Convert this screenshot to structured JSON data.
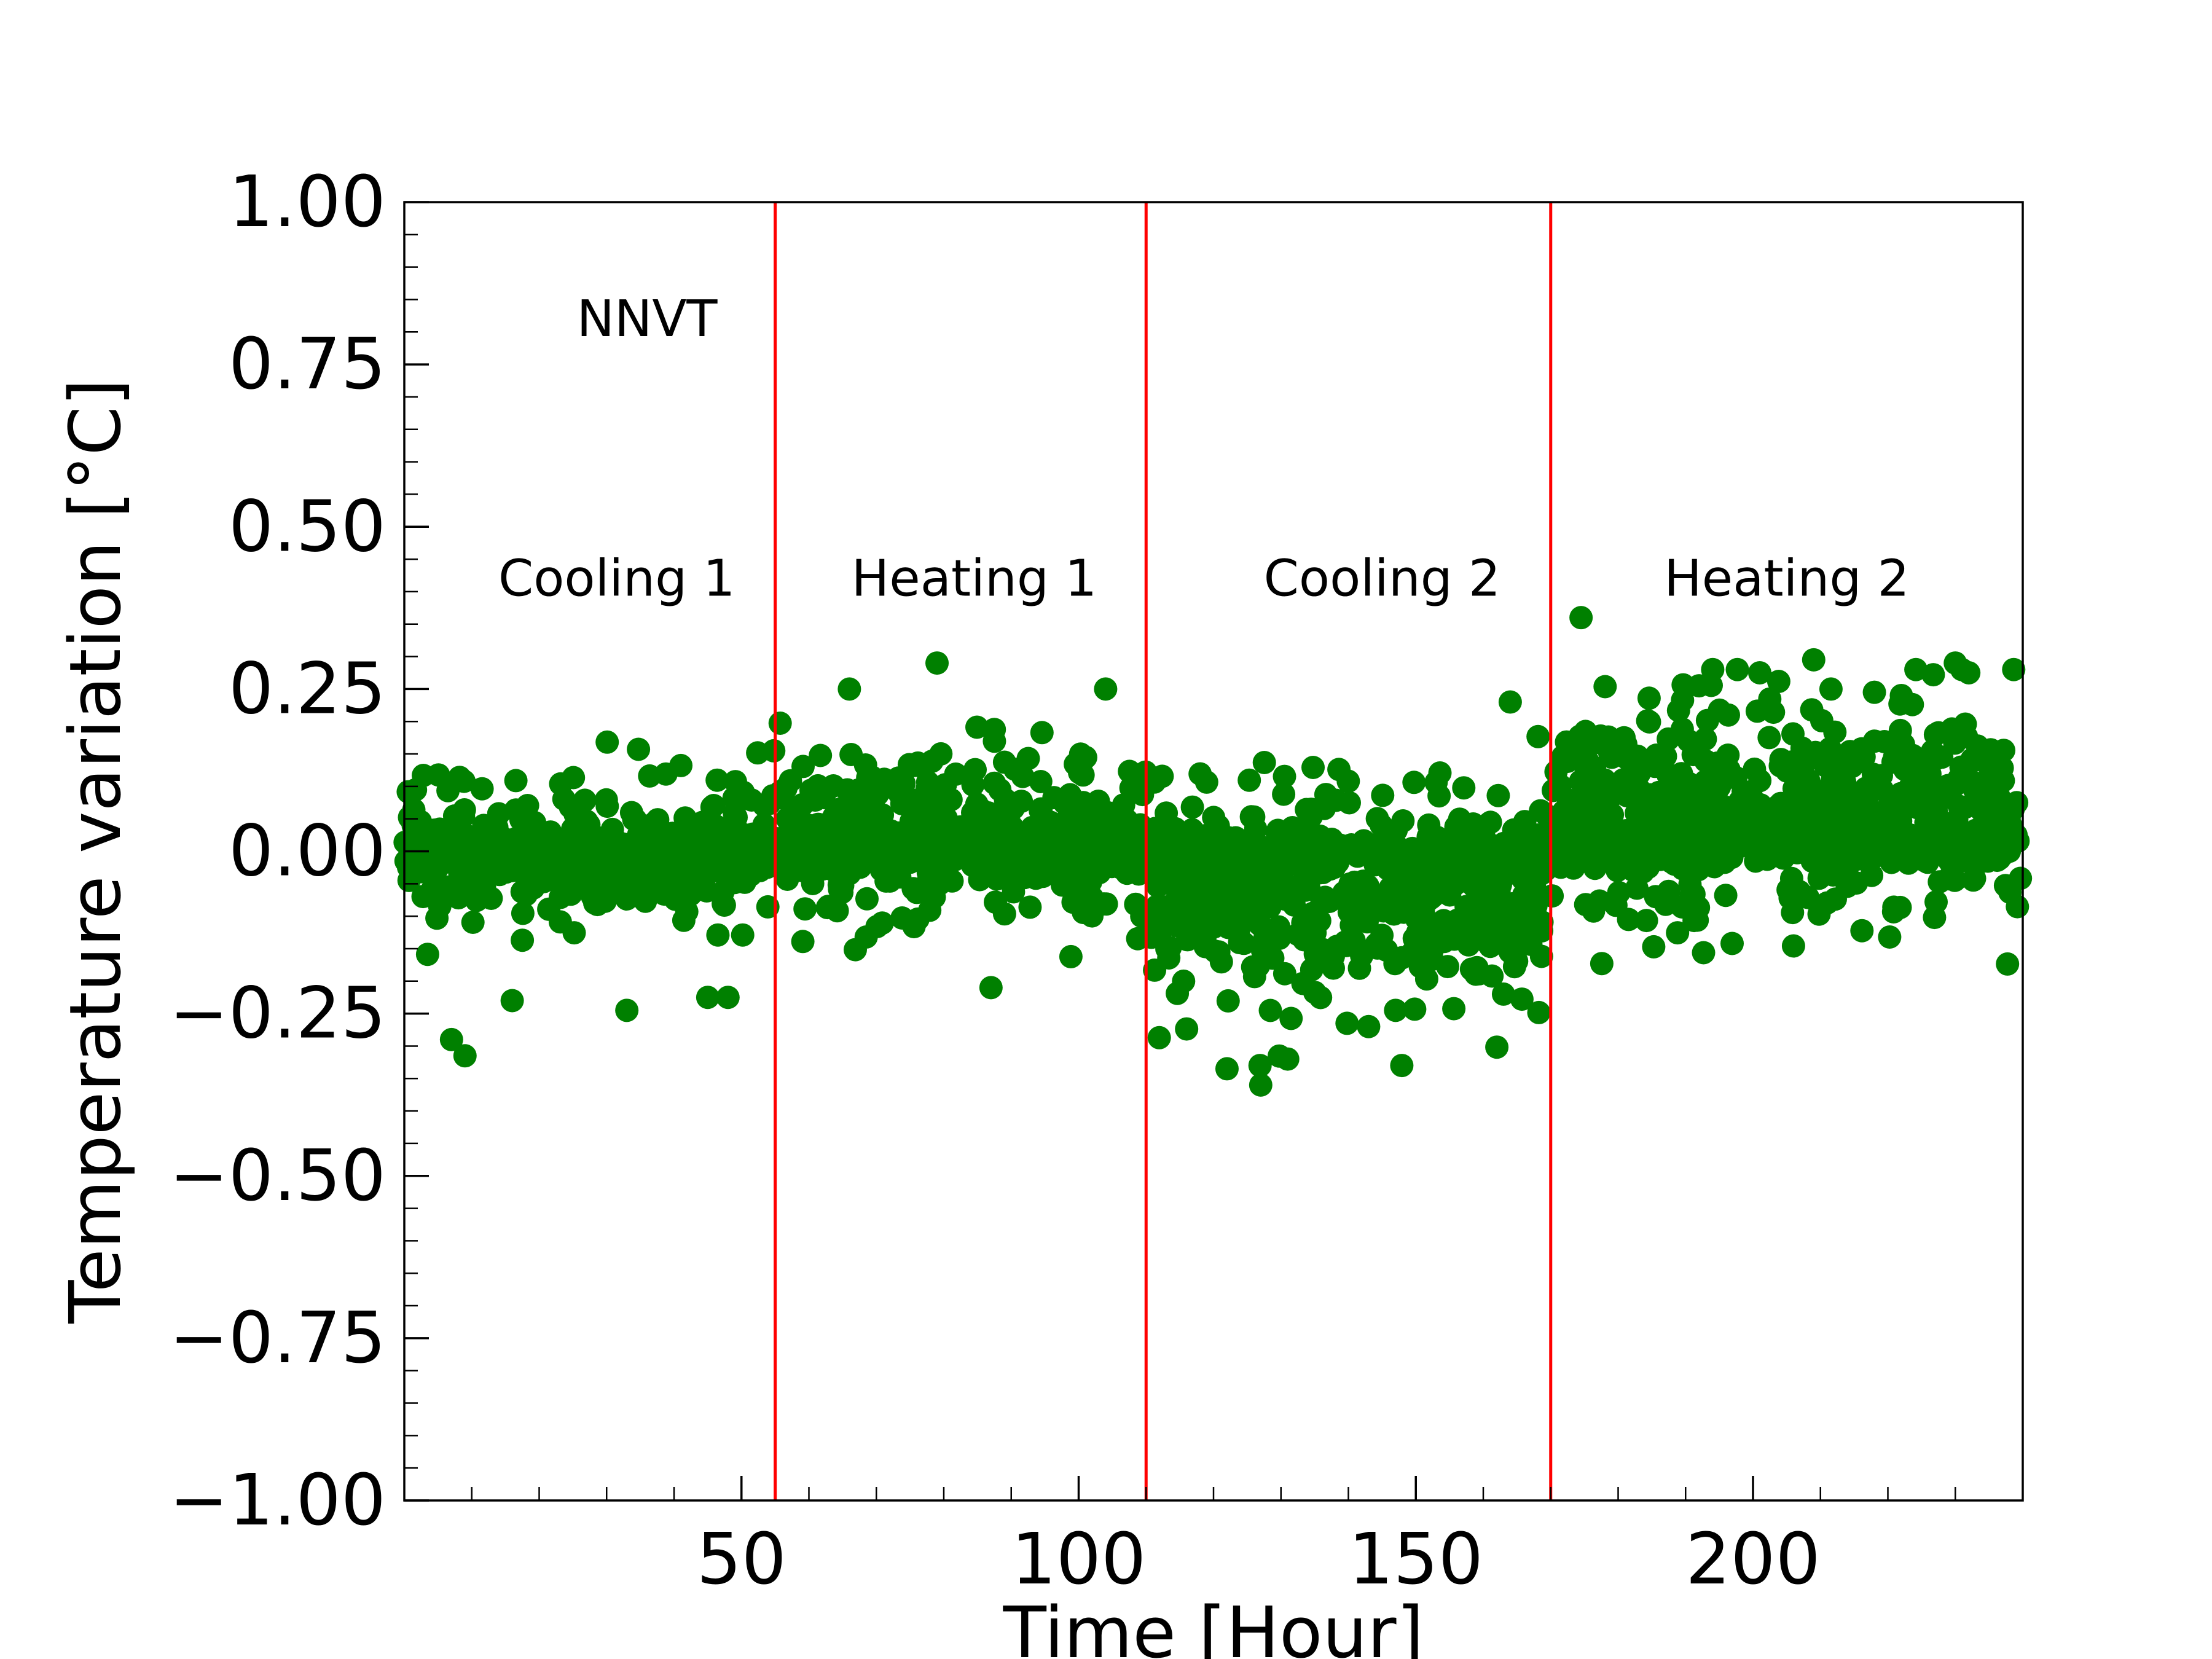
{
  "chart_data": {
    "type": "scatter",
    "title": "",
    "xlabel": "Time [Hour]",
    "ylabel": "Temperature variation [°C]",
    "xlim": [
      0,
      240
    ],
    "ylim": [
      -1.0,
      1.0
    ],
    "x_ticks": [
      50,
      100,
      150,
      200
    ],
    "x_tick_labels": [
      "50",
      "100",
      "150",
      "200"
    ],
    "y_ticks": [
      -1.0,
      -0.75,
      -0.5,
      -0.25,
      0.0,
      0.25,
      0.5,
      0.75,
      1.0
    ],
    "y_tick_labels": [
      "−1.00",
      "−0.75",
      "−0.50",
      "−0.25",
      "0.00",
      "0.25",
      "0.50",
      "0.75",
      "1.00"
    ],
    "grid": false,
    "series_color": "#008000",
    "vline_color": "#ff0000",
    "vlines": [
      55,
      110,
      170
    ],
    "annotations": [
      {
        "text": "NNVT",
        "x": 36,
        "y": 0.815
      },
      {
        "text": "Cooling 1",
        "x": 31.5,
        "y": 0.415
      },
      {
        "text": "Heating 1",
        "x": 84.5,
        "y": 0.415
      },
      {
        "text": "Cooling 2",
        "x": 145,
        "y": 0.415
      },
      {
        "text": "Heating 2",
        "x": 205,
        "y": 0.415
      }
    ],
    "segments": [
      {
        "name": "Cooling 1",
        "x_range": [
          0,
          55
        ],
        "mean_start": 0.0,
        "mean_end": 0.0,
        "spread": 0.06,
        "count": 520
      },
      {
        "name": "Heating 1",
        "x_range": [
          55,
          110
        ],
        "mean_start": 0.02,
        "mean_end": 0.03,
        "spread": 0.07,
        "count": 560
      },
      {
        "name": "Cooling 2",
        "x_range": [
          110,
          170
        ],
        "mean_start": -0.02,
        "mean_end": -0.02,
        "spread": 0.08,
        "count": 600
      },
      {
        "name": "Heating 2",
        "x_range": [
          170,
          240
        ],
        "mean_start": 0.02,
        "mean_end": 0.05,
        "spread": 0.08,
        "count": 700
      }
    ],
    "outliers": [
      {
        "x": 174.5,
        "y": 0.36
      },
      {
        "x": 79,
        "y": 0.29
      },
      {
        "x": 209,
        "y": 0.295
      },
      {
        "x": 230,
        "y": 0.29
      },
      {
        "x": 232,
        "y": 0.275
      },
      {
        "x": 201,
        "y": 0.275
      },
      {
        "x": 127,
        "y": -0.36
      },
      {
        "x": 122,
        "y": -0.335
      },
      {
        "x": 131,
        "y": -0.32
      },
      {
        "x": 9,
        "y": -0.315
      },
      {
        "x": 7,
        "y": -0.29
      },
      {
        "x": 33,
        "y": -0.245
      },
      {
        "x": 87,
        "y": -0.21
      },
      {
        "x": 163,
        "y": -0.22
      },
      {
        "x": 164,
        "y": 0.23
      },
      {
        "x": 16,
        "y": -0.23
      },
      {
        "x": 45,
        "y": -0.225
      },
      {
        "x": 48,
        "y": -0.225
      },
      {
        "x": 143,
        "y": -0.27
      },
      {
        "x": 147,
        "y": -0.245
      },
      {
        "x": 192,
        "y": 0.255
      },
      {
        "x": 66,
        "y": 0.25
      },
      {
        "x": 104,
        "y": 0.25
      },
      {
        "x": 218,
        "y": 0.245
      },
      {
        "x": 222,
        "y": 0.24
      }
    ]
  }
}
